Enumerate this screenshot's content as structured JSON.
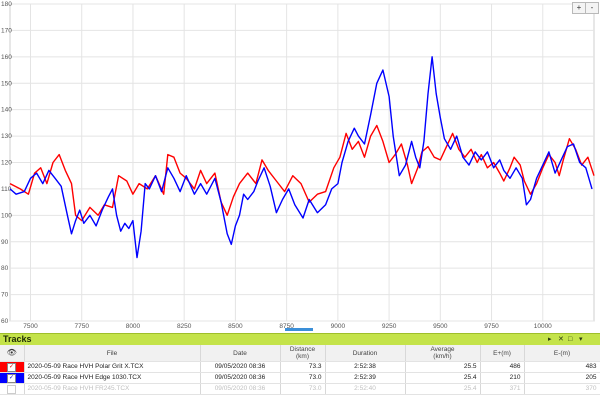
{
  "chart": {
    "y_ticks": [
      "60",
      "70",
      "80",
      "90",
      "100",
      "110",
      "120",
      "130",
      "140",
      "150",
      "160",
      "170",
      "180"
    ],
    "x_ticks": [
      "7500",
      "7750",
      "8000",
      "8250",
      "8500",
      "8750",
      "9000",
      "9250",
      "9500",
      "9750",
      "10000"
    ],
    "zoom_in_label": "+",
    "zoom_out_label": "-"
  },
  "chart_data": {
    "type": "line",
    "xlim": [
      7400,
      10250
    ],
    "ylim": [
      60,
      180
    ],
    "grid": true,
    "series": [
      {
        "color": "#ff0000",
        "points": [
          [
            7400,
            112
          ],
          [
            7450,
            110
          ],
          [
            7490,
            108
          ],
          [
            7520,
            116
          ],
          [
            7550,
            118
          ],
          [
            7580,
            112
          ],
          [
            7610,
            120
          ],
          [
            7640,
            123
          ],
          [
            7670,
            117
          ],
          [
            7700,
            112
          ],
          [
            7720,
            100
          ],
          [
            7750,
            98
          ],
          [
            7790,
            103
          ],
          [
            7830,
            100
          ],
          [
            7860,
            104
          ],
          [
            7900,
            103
          ],
          [
            7930,
            115
          ],
          [
            7970,
            113
          ],
          [
            8000,
            108
          ],
          [
            8030,
            112
          ],
          [
            8070,
            110
          ],
          [
            8110,
            115
          ],
          [
            8150,
            108
          ],
          [
            8170,
            123
          ],
          [
            8200,
            122
          ],
          [
            8230,
            116
          ],
          [
            8260,
            114
          ],
          [
            8300,
            110
          ],
          [
            8330,
            117
          ],
          [
            8360,
            112
          ],
          [
            8400,
            116
          ],
          [
            8430,
            105
          ],
          [
            8460,
            100
          ],
          [
            8490,
            107
          ],
          [
            8520,
            112
          ],
          [
            8560,
            116
          ],
          [
            8600,
            112
          ],
          [
            8630,
            121
          ],
          [
            8660,
            117
          ],
          [
            8700,
            113
          ],
          [
            8740,
            109
          ],
          [
            8780,
            115
          ],
          [
            8820,
            112
          ],
          [
            8860,
            105
          ],
          [
            8900,
            108
          ],
          [
            8940,
            109
          ],
          [
            8980,
            118
          ],
          [
            9010,
            122
          ],
          [
            9040,
            131
          ],
          [
            9070,
            125
          ],
          [
            9100,
            128
          ],
          [
            9130,
            122
          ],
          [
            9160,
            130
          ],
          [
            9190,
            134
          ],
          [
            9220,
            128
          ],
          [
            9250,
            120
          ],
          [
            9280,
            123
          ],
          [
            9310,
            127
          ],
          [
            9340,
            119
          ],
          [
            9360,
            112
          ],
          [
            9390,
            118
          ],
          [
            9410,
            124
          ],
          [
            9440,
            126
          ],
          [
            9470,
            122
          ],
          [
            9500,
            121
          ],
          [
            9530,
            126
          ],
          [
            9560,
            131
          ],
          [
            9590,
            125
          ],
          [
            9620,
            122
          ],
          [
            9650,
            125
          ],
          [
            9680,
            120
          ],
          [
            9700,
            123
          ],
          [
            9730,
            118
          ],
          [
            9760,
            120
          ],
          [
            9790,
            116
          ],
          [
            9810,
            113
          ],
          [
            9840,
            118
          ],
          [
            9860,
            122
          ],
          [
            9890,
            119
          ],
          [
            9910,
            113
          ],
          [
            9940,
            108
          ],
          [
            9970,
            112
          ],
          [
            10000,
            118
          ],
          [
            10030,
            123
          ],
          [
            10060,
            120
          ],
          [
            10080,
            115
          ],
          [
            10100,
            121
          ],
          [
            10130,
            129
          ],
          [
            10160,
            125
          ],
          [
            10190,
            119
          ],
          [
            10220,
            122
          ],
          [
            10250,
            115
          ]
        ]
      },
      {
        "color": "#0000ff",
        "points": [
          [
            7400,
            110
          ],
          [
            7430,
            108
          ],
          [
            7470,
            109
          ],
          [
            7500,
            114
          ],
          [
            7530,
            116
          ],
          [
            7560,
            112
          ],
          [
            7590,
            117
          ],
          [
            7620,
            114
          ],
          [
            7650,
            111
          ],
          [
            7680,
            100
          ],
          [
            7700,
            93
          ],
          [
            7720,
            98
          ],
          [
            7740,
            102
          ],
          [
            7760,
            97
          ],
          [
            7790,
            100
          ],
          [
            7820,
            96
          ],
          [
            7850,
            102
          ],
          [
            7880,
            107
          ],
          [
            7900,
            110
          ],
          [
            7920,
            100
          ],
          [
            7940,
            94
          ],
          [
            7960,
            97
          ],
          [
            7980,
            95
          ],
          [
            8000,
            98
          ],
          [
            8020,
            84
          ],
          [
            8040,
            94
          ],
          [
            8060,
            112
          ],
          [
            8080,
            110
          ],
          [
            8110,
            115
          ],
          [
            8140,
            109
          ],
          [
            8170,
            118
          ],
          [
            8200,
            114
          ],
          [
            8230,
            109
          ],
          [
            8260,
            115
          ],
          [
            8300,
            108
          ],
          [
            8330,
            112
          ],
          [
            8360,
            108
          ],
          [
            8400,
            114
          ],
          [
            8430,
            105
          ],
          [
            8460,
            93
          ],
          [
            8480,
            89
          ],
          [
            8500,
            96
          ],
          [
            8520,
            100
          ],
          [
            8540,
            108
          ],
          [
            8560,
            106
          ],
          [
            8590,
            109
          ],
          [
            8610,
            113
          ],
          [
            8640,
            118
          ],
          [
            8670,
            111
          ],
          [
            8700,
            101
          ],
          [
            8730,
            106
          ],
          [
            8760,
            110
          ],
          [
            8790,
            104
          ],
          [
            8830,
            99
          ],
          [
            8860,
            106
          ],
          [
            8900,
            101
          ],
          [
            8940,
            104
          ],
          [
            8970,
            110
          ],
          [
            9000,
            112
          ],
          [
            9020,
            120
          ],
          [
            9050,
            128
          ],
          [
            9080,
            133
          ],
          [
            9100,
            130
          ],
          [
            9130,
            127
          ],
          [
            9160,
            138
          ],
          [
            9190,
            150
          ],
          [
            9220,
            155
          ],
          [
            9250,
            145
          ],
          [
            9270,
            130
          ],
          [
            9300,
            115
          ],
          [
            9330,
            119
          ],
          [
            9360,
            128
          ],
          [
            9380,
            122
          ],
          [
            9400,
            118
          ],
          [
            9420,
            128
          ],
          [
            9440,
            146
          ],
          [
            9460,
            160
          ],
          [
            9480,
            146
          ],
          [
            9500,
            137
          ],
          [
            9520,
            129
          ],
          [
            9550,
            125
          ],
          [
            9580,
            130
          ],
          [
            9610,
            122
          ],
          [
            9640,
            119
          ],
          [
            9670,
            124
          ],
          [
            9700,
            121
          ],
          [
            9730,
            124
          ],
          [
            9760,
            118
          ],
          [
            9790,
            121
          ],
          [
            9810,
            117
          ],
          [
            9840,
            114
          ],
          [
            9870,
            118
          ],
          [
            9900,
            114
          ],
          [
            9920,
            104
          ],
          [
            9940,
            106
          ],
          [
            9970,
            114
          ],
          [
            10000,
            119
          ],
          [
            10030,
            124
          ],
          [
            10060,
            116
          ],
          [
            10090,
            121
          ],
          [
            10120,
            126
          ],
          [
            10150,
            127
          ],
          [
            10180,
            120
          ],
          [
            10210,
            118
          ],
          [
            10240,
            110
          ]
        ]
      }
    ]
  },
  "tracks": {
    "title": "Tracks",
    "header_icons": [
      "pin-icon",
      "close-icon",
      "expand-icon",
      "collapse-icon"
    ],
    "columns": {
      "file": "File",
      "date": "Date",
      "distance": "Distance",
      "distance_unit": "(km)",
      "duration": "Duration",
      "average": "Average",
      "average_unit": "(km/h)",
      "eplus": "E+(m)",
      "eminus": "E-(m)"
    },
    "rows": [
      {
        "color": "#ff0000",
        "file": "2020-05-09 Race HVH Polar Grit X.TCX",
        "date": "09/05/2020 08:36",
        "distance": "73.3",
        "duration": "2:52:38",
        "average": "25.5",
        "eplus": "486",
        "eminus": "483"
      },
      {
        "color": "#0000ff",
        "file": "2020-05-09 Race HVH Edge 1030.TCX",
        "date": "09/05/2020 08:36",
        "distance": "73.0",
        "duration": "2:52:39",
        "average": "25.4",
        "eplus": "210",
        "eminus": "205"
      },
      {
        "color": "#bbbbbb",
        "file": "2020-05-09 Race HVH FR245.TCX",
        "date": "09/05/2020 08:36",
        "distance": "73.0",
        "duration": "2:52:40",
        "average": "25.4",
        "eplus": "371",
        "eminus": "370"
      }
    ]
  }
}
